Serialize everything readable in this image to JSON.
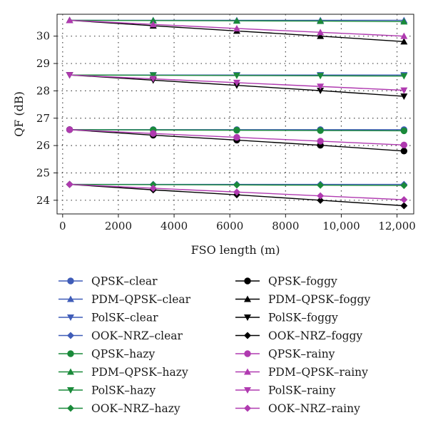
{
  "chart_data": {
    "type": "line",
    "title": "",
    "xlabel": "FSO length (m)",
    "ylabel": "QF (dB)",
    "xlim": [
      -200,
      12600
    ],
    "ylim": [
      23.5,
      30.8
    ],
    "x": [
      250,
      3250,
      6250,
      9250,
      12250
    ],
    "x_ticks": [
      0,
      2000,
      4000,
      6000,
      8000,
      10000,
      12000
    ],
    "x_tick_labels": [
      "0",
      "2000",
      "4000",
      "6000",
      "8000",
      "10,000",
      "12,000"
    ],
    "y_ticks": [
      24,
      25,
      26,
      27,
      28,
      29,
      30
    ],
    "y_tick_labels": [
      "24",
      "25",
      "26",
      "27",
      "28",
      "29",
      "30"
    ],
    "grid": "dotted",
    "legend_position": "below",
    "colors": {
      "clear": "#3f5cb8",
      "hazy": "#1a8a3a",
      "foggy": "#000000",
      "rainy": "#b03ab0"
    },
    "series": [
      {
        "name": "QPSK–clear",
        "condition": "clear",
        "marker": "circle",
        "values": [
          26.58,
          26.58,
          26.58,
          26.58,
          26.58
        ]
      },
      {
        "name": "PDM–QPSK–clear",
        "condition": "clear",
        "marker": "triangle-up",
        "values": [
          30.58,
          30.58,
          30.58,
          30.58,
          30.58
        ]
      },
      {
        "name": "PolSK–clear",
        "condition": "clear",
        "marker": "triangle-down",
        "values": [
          28.58,
          28.58,
          28.58,
          28.58,
          28.58
        ]
      },
      {
        "name": "OOK–NRZ–clear",
        "condition": "clear",
        "marker": "diamond",
        "values": [
          24.58,
          24.58,
          24.58,
          24.58,
          24.58
        ]
      },
      {
        "name": "QPSK–hazy",
        "condition": "hazy",
        "marker": "circle",
        "values": [
          26.58,
          26.57,
          26.56,
          26.55,
          26.54
        ]
      },
      {
        "name": "PDM–QPSK–hazy",
        "condition": "hazy",
        "marker": "triangle-up",
        "values": [
          30.58,
          30.57,
          30.56,
          30.55,
          30.53
        ]
      },
      {
        "name": "PolSK–hazy",
        "condition": "hazy",
        "marker": "triangle-down",
        "values": [
          28.58,
          28.57,
          28.56,
          28.55,
          28.54
        ]
      },
      {
        "name": "OOK–NRZ–hazy",
        "condition": "hazy",
        "marker": "diamond",
        "values": [
          24.58,
          24.57,
          24.56,
          24.55,
          24.54
        ]
      },
      {
        "name": "QPSK–foggy",
        "condition": "foggy",
        "marker": "circle",
        "values": [
          26.58,
          26.38,
          26.2,
          26.01,
          25.8
        ]
      },
      {
        "name": "PDM–QPSK–foggy",
        "condition": "foggy",
        "marker": "triangle-up",
        "values": [
          30.58,
          30.38,
          30.19,
          30.0,
          29.8
        ]
      },
      {
        "name": "PolSK–foggy",
        "condition": "foggy",
        "marker": "triangle-down",
        "values": [
          28.58,
          28.39,
          28.2,
          28.01,
          27.8
        ]
      },
      {
        "name": "OOK–NRZ–foggy",
        "condition": "foggy",
        "marker": "diamond",
        "values": [
          24.58,
          24.38,
          24.2,
          24.0,
          23.8
        ]
      },
      {
        "name": "QPSK–rainy",
        "condition": "rainy",
        "marker": "circle",
        "values": [
          26.58,
          26.44,
          26.3,
          26.16,
          26.02
        ]
      },
      {
        "name": "PDM–QPSK–rainy",
        "condition": "rainy",
        "marker": "triangle-up",
        "values": [
          30.58,
          30.43,
          30.28,
          30.14,
          30.0
        ]
      },
      {
        "name": "PolSK–rainy",
        "condition": "rainy",
        "marker": "triangle-down",
        "values": [
          28.58,
          28.44,
          28.3,
          28.16,
          28.02
        ]
      },
      {
        "name": "OOK–NRZ–rainy",
        "condition": "rainy",
        "marker": "diamond",
        "values": [
          24.58,
          24.44,
          24.3,
          24.16,
          24.02
        ]
      }
    ]
  }
}
